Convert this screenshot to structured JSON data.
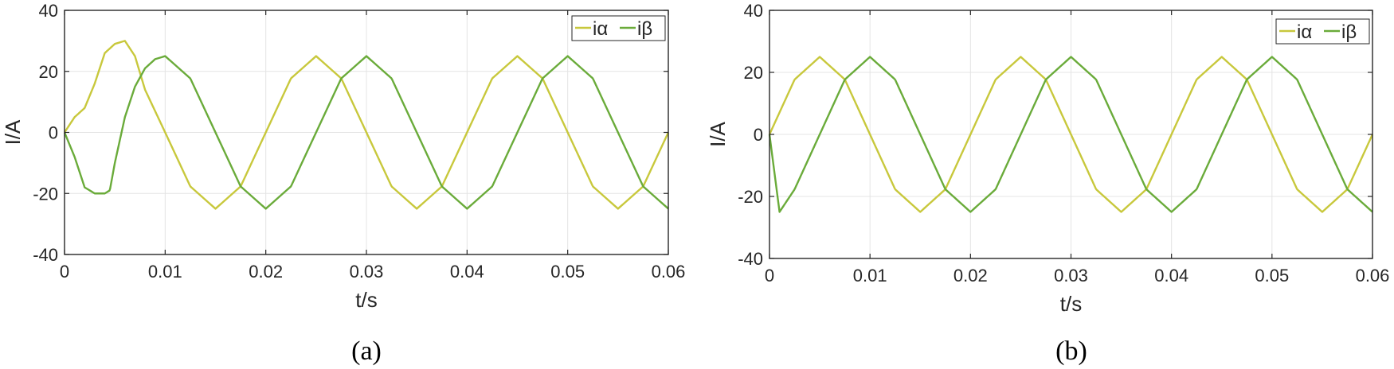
{
  "colors": {
    "i_alpha": "#c8c83c",
    "i_beta": "#6aab3a",
    "axis": "#262626",
    "grid": "#e4e4e4"
  },
  "chart_data": [
    {
      "type": "line",
      "caption": "(a)",
      "xlabel": "t/s",
      "ylabel": "I/A",
      "xlim": [
        0,
        0.06
      ],
      "ylim": [
        -40,
        40
      ],
      "xticks": [
        0,
        0.01,
        0.02,
        0.03,
        0.04,
        0.05,
        0.06
      ],
      "xtick_labels": [
        "0",
        "0.01",
        "0.02",
        "0.03",
        "0.04",
        "0.05",
        "0.06"
      ],
      "yticks": [
        -40,
        -20,
        0,
        20,
        40
      ],
      "ytick_labels": [
        "-40",
        "-20",
        "0",
        "20",
        "40"
      ],
      "grid": true,
      "legend_position": "top-right",
      "series": [
        {
          "name": "iα",
          "x": [
            0,
            0.001,
            0.002,
            0.003,
            0.004,
            0.005,
            0.006,
            0.007,
            0.008,
            0.009,
            0.01,
            0.0125,
            0.015,
            0.0175,
            0.02,
            0.0225,
            0.025,
            0.0275,
            0.03,
            0.0325,
            0.035,
            0.0375,
            0.04,
            0.0425,
            0.045,
            0.0475,
            0.05,
            0.0525,
            0.055,
            0.0575,
            0.06
          ],
          "y": [
            0,
            5,
            8,
            16,
            26,
            29,
            30,
            25,
            14,
            7,
            0,
            -17.7,
            -25,
            -17.7,
            0,
            17.7,
            25,
            17.7,
            0,
            -17.7,
            -25,
            -17.7,
            0,
            17.7,
            25,
            17.7,
            0,
            -17.7,
            -25,
            -17.7,
            0
          ]
        },
        {
          "name": "iβ",
          "x": [
            0,
            0.001,
            0.002,
            0.003,
            0.004,
            0.0045,
            0.005,
            0.006,
            0.007,
            0.008,
            0.009,
            0.01,
            0.0125,
            0.015,
            0.0175,
            0.02,
            0.0225,
            0.025,
            0.0275,
            0.03,
            0.0325,
            0.035,
            0.0375,
            0.04,
            0.0425,
            0.045,
            0.0475,
            0.05,
            0.0525,
            0.055,
            0.0575,
            0.06
          ],
          "y": [
            0,
            -8,
            -18,
            -20,
            -20,
            -19,
            -10,
            5,
            15,
            21,
            24,
            25,
            17.7,
            0,
            -17.7,
            -25,
            -17.7,
            0,
            17.7,
            25,
            17.7,
            0,
            -17.7,
            -25,
            -17.7,
            0,
            17.7,
            25,
            17.7,
            0,
            -17.7,
            -25
          ]
        }
      ]
    },
    {
      "type": "line",
      "caption": "(b)",
      "xlabel": "t/s",
      "ylabel": "I/A",
      "xlim": [
        0,
        0.06
      ],
      "ylim": [
        -40,
        40
      ],
      "xticks": [
        0,
        0.01,
        0.02,
        0.03,
        0.04,
        0.05,
        0.06
      ],
      "xtick_labels": [
        "0",
        "0.01",
        "0.02",
        "0.03",
        "0.04",
        "0.05",
        "0.06"
      ],
      "yticks": [
        -40,
        -20,
        0,
        20,
        40
      ],
      "ytick_labels": [
        "-40",
        "-20",
        "0",
        "20",
        "40"
      ],
      "grid": true,
      "legend_position": "top-right",
      "series": [
        {
          "name": "iα",
          "x": [
            0,
            0.0025,
            0.005,
            0.0075,
            0.01,
            0.0125,
            0.015,
            0.0175,
            0.02,
            0.0225,
            0.025,
            0.0275,
            0.03,
            0.0325,
            0.035,
            0.0375,
            0.04,
            0.0425,
            0.045,
            0.0475,
            0.05,
            0.0525,
            0.055,
            0.0575,
            0.06
          ],
          "y": [
            0,
            17.7,
            25,
            17.7,
            0,
            -17.7,
            -25,
            -17.7,
            0,
            17.7,
            25,
            17.7,
            0,
            -17.7,
            -25,
            -17.7,
            0,
            17.7,
            25,
            17.7,
            0,
            -17.7,
            -25,
            -17.7,
            0
          ]
        },
        {
          "name": "iβ",
          "x": [
            0,
            0.001,
            0.0025,
            0.005,
            0.0075,
            0.01,
            0.0125,
            0.015,
            0.0175,
            0.02,
            0.0225,
            0.025,
            0.0275,
            0.03,
            0.0325,
            0.035,
            0.0375,
            0.04,
            0.0425,
            0.045,
            0.0475,
            0.05,
            0.0525,
            0.055,
            0.0575,
            0.06
          ],
          "y": [
            0,
            -25,
            -17.7,
            0,
            17.7,
            25,
            17.7,
            0,
            -17.7,
            -25,
            -17.7,
            0,
            17.7,
            25,
            17.7,
            0,
            -17.7,
            -25,
            -17.7,
            0,
            17.7,
            25,
            17.7,
            0,
            -17.7,
            -25
          ]
        }
      ]
    }
  ]
}
